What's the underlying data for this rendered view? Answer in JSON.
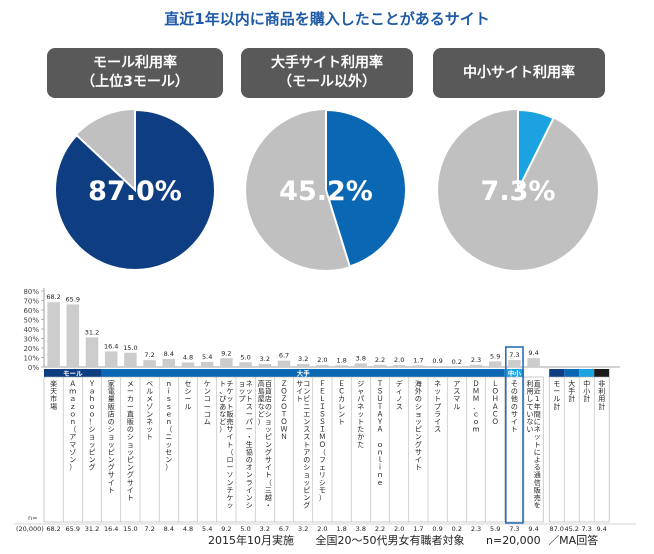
{
  "title": "直近1年以内に商品を購入したことがあるサイト",
  "pies": [
    {
      "label_line1": "モール利用率",
      "label_line2": "（上位3モール）",
      "value": 87.0,
      "value_text": "87.0%",
      "color": "#0f3d82"
    },
    {
      "label_line1": "大手サイト利用率",
      "label_line2": "（モール以外）",
      "value": 45.2,
      "value_text": "45.2%",
      "color": "#0a67b3"
    },
    {
      "label_line1": "中小サイト利用率",
      "label_line2": "",
      "value": 7.3,
      "value_text": "7.3%",
      "color": "#1aa3e0"
    }
  ],
  "colors": {
    "bar_gray": "#cccccc",
    "pie_rest": "#c0c0c0",
    "mall_band": "#0f3d82",
    "large_band": "#0a67b3",
    "small_band": "#1aa3e0",
    "highlight_box": "#2a6ebd"
  },
  "chart_data": {
    "type": "bar",
    "ylim": [
      0,
      80
    ],
    "yticks": [
      "80%",
      "70%",
      "60%",
      "50%",
      "40%",
      "30%",
      "20%",
      "10%",
      "0%"
    ],
    "groups": [
      {
        "label": "モール",
        "count": 3
      },
      {
        "label": "大手",
        "count": 21
      },
      {
        "label": "中小",
        "count": 1
      }
    ],
    "categories": [
      "楽天市場",
      "Ａｍａｚｏｎ（アマゾン）",
      "Ｙａｈｏｏ！ショッピング",
      "家電量販店のショッピングサイト",
      "メーカー直販のショッピングサイト",
      "ベルメゾンネット",
      "ｎｉｓｓｅｎ（ニッセン）",
      "セシール",
      "ケンコーコム",
      "チケット販売サイト（ローソンチケット、ぴあなど）",
      "ネットスーパー・生協のオンラインショップ",
      "百貨店のショッピングサイト（三越・高島屋など）",
      "ＺＯＺＯＴＯＷＮ",
      "コンビニエンスストアのショッピングサイト",
      "ＦＥＬＩＳＳＩＭＯ（フェリシモ）",
      "ＥＣカレント",
      "ジャパネットたかた",
      "ＴＳＵＴＡＹＡ ｏｎｌｉｎｅ",
      "ディノス",
      "海外のショッピングサイト",
      "ネットプライス",
      "アスマル",
      "ＤＭＭ．ｃｏｍ",
      "ＬＯＨＡＣＯ",
      "その他のサイト"
    ],
    "values": [
      68.2,
      65.9,
      31.2,
      16.4,
      15.0,
      7.2,
      8.4,
      4.8,
      5.4,
      9.2,
      5.0,
      3.2,
      6.7,
      3.2,
      2.0,
      1.8,
      3.8,
      2.2,
      2.0,
      1.7,
      0.9,
      0.2,
      2.3,
      5.9,
      7.3
    ],
    "value_labels": [
      "68.2",
      "65.9",
      "31.2",
      "16.4",
      "15.0",
      "7.2",
      "8.4",
      "4.8",
      "5.4",
      "9.2",
      "5.0",
      "3.2",
      "6.7",
      "3.2",
      "2.0",
      "1.8",
      "3.8",
      "2.2",
      "2.0",
      "1.7",
      "0.9",
      "0.2",
      "2.3",
      "5.9",
      "7.3"
    ],
    "summary": {
      "categories": [
        "直近1年間にネットによる通信販売を利用していない",
        "モール計",
        "大手計",
        "中小計",
        "非利用計"
      ],
      "values": [
        9.4,
        87.0,
        45.2,
        7.3,
        9.4
      ],
      "value_labels": [
        "9.4",
        "87.0",
        "45.2",
        "7.3",
        "9.4"
      ]
    },
    "n_label": "n=",
    "n_value": "(20,000)"
  },
  "footer": {
    "date": "2015年10月実施",
    "target": "全国20～50代男女有職者対象",
    "n": "n=20,000",
    "ma": "／MA回答"
  }
}
